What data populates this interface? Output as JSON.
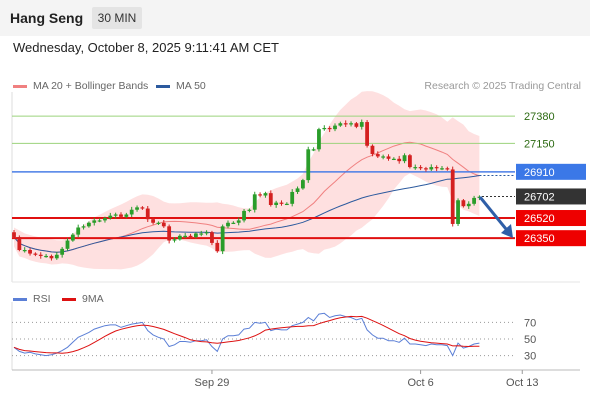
{
  "header": {
    "instrument": "Hang Seng",
    "timeframe": "30 MIN"
  },
  "datetime": "Wednesday, October 8, 2025 9:11:41 AM CET",
  "legend": {
    "ma20": {
      "label": "MA 20 + Bollinger Bands",
      "color": "#f08080"
    },
    "ma50": {
      "label": "MA 50",
      "color": "#2c5a9e"
    }
  },
  "credit": "Research © 2025 Trading Central",
  "rsi_legend": {
    "rsi": {
      "label": "RSI",
      "color": "#5b7fd6"
    },
    "ma9": {
      "label": "9MA",
      "color": "#dd1111"
    }
  },
  "chart_data": [
    {
      "type": "candlestick",
      "title": "Hang Seng 30 MIN",
      "ylim": [
        25980,
        27550
      ],
      "x_ticks": [
        {
          "label": "Sep 29",
          "index": 37
        },
        {
          "label": "Oct 6",
          "index": 76
        },
        {
          "label": "Oct 13",
          "index": 95
        }
      ],
      "closes": [
        26360,
        26250,
        26250,
        26220,
        26210,
        26200,
        26200,
        26180,
        26210,
        26260,
        26330,
        26380,
        26440,
        26450,
        26480,
        26500,
        26500,
        26520,
        26540,
        26550,
        26530,
        26550,
        26590,
        26610,
        26600,
        26510,
        26480,
        26480,
        26450,
        26330,
        26340,
        26370,
        26370,
        26360,
        26390,
        26390,
        26400,
        26310,
        26240,
        26450,
        26480,
        26480,
        26500,
        26580,
        26590,
        26720,
        26710,
        26730,
        26630,
        26650,
        26640,
        26640,
        26740,
        26770,
        26840,
        27100,
        27100,
        27270,
        27280,
        27270,
        27300,
        27320,
        27310,
        27320,
        27290,
        27330,
        27130,
        27060,
        27040,
        27040,
        27020,
        27020,
        27000,
        27050,
        26950,
        26950,
        26940,
        26930,
        26950,
        26940,
        26940,
        26930,
        26470,
        26670,
        26620,
        26640,
        26690,
        26700
      ],
      "support_resistance": [
        {
          "value": 27380,
          "label": "27380",
          "style": "thin-green"
        },
        {
          "value": 27150,
          "label": "27150",
          "style": "thin-green"
        },
        {
          "value": 26910,
          "label": "26910",
          "style": "blue"
        },
        {
          "value": 26702,
          "label": "26702",
          "style": "current"
        },
        {
          "value": 26520,
          "label": "26520",
          "style": "red"
        },
        {
          "value": 26350,
          "label": "26350",
          "style": "red"
        }
      ],
      "projection": "down-arrow"
    },
    {
      "type": "line",
      "series": [
        {
          "name": "RSI",
          "color": "#5b7fd6"
        },
        {
          "name": "9MA",
          "color": "#dd1111"
        }
      ],
      "ylim": [
        15,
        85
      ],
      "y_ticks": [
        70,
        50,
        30
      ],
      "rsi": [
        40,
        35,
        33,
        34,
        32,
        31,
        30,
        31,
        33,
        36,
        40,
        46,
        52,
        55,
        58,
        62,
        64,
        66,
        67,
        67,
        64,
        66,
        68,
        69,
        70,
        60,
        55,
        52,
        50,
        41,
        43,
        47,
        47,
        46,
        48,
        48,
        49,
        41,
        35,
        50,
        54,
        54,
        55,
        62,
        63,
        70,
        69,
        70,
        60,
        62,
        61,
        61,
        66,
        68,
        70,
        76,
        72,
        80,
        81,
        76,
        78,
        79,
        77,
        76,
        73,
        75,
        61,
        55,
        51,
        51,
        48,
        48,
        46,
        51,
        44,
        44,
        43,
        42,
        44,
        43,
        43,
        42,
        30,
        45,
        39,
        41,
        44,
        45
      ]
    }
  ]
}
